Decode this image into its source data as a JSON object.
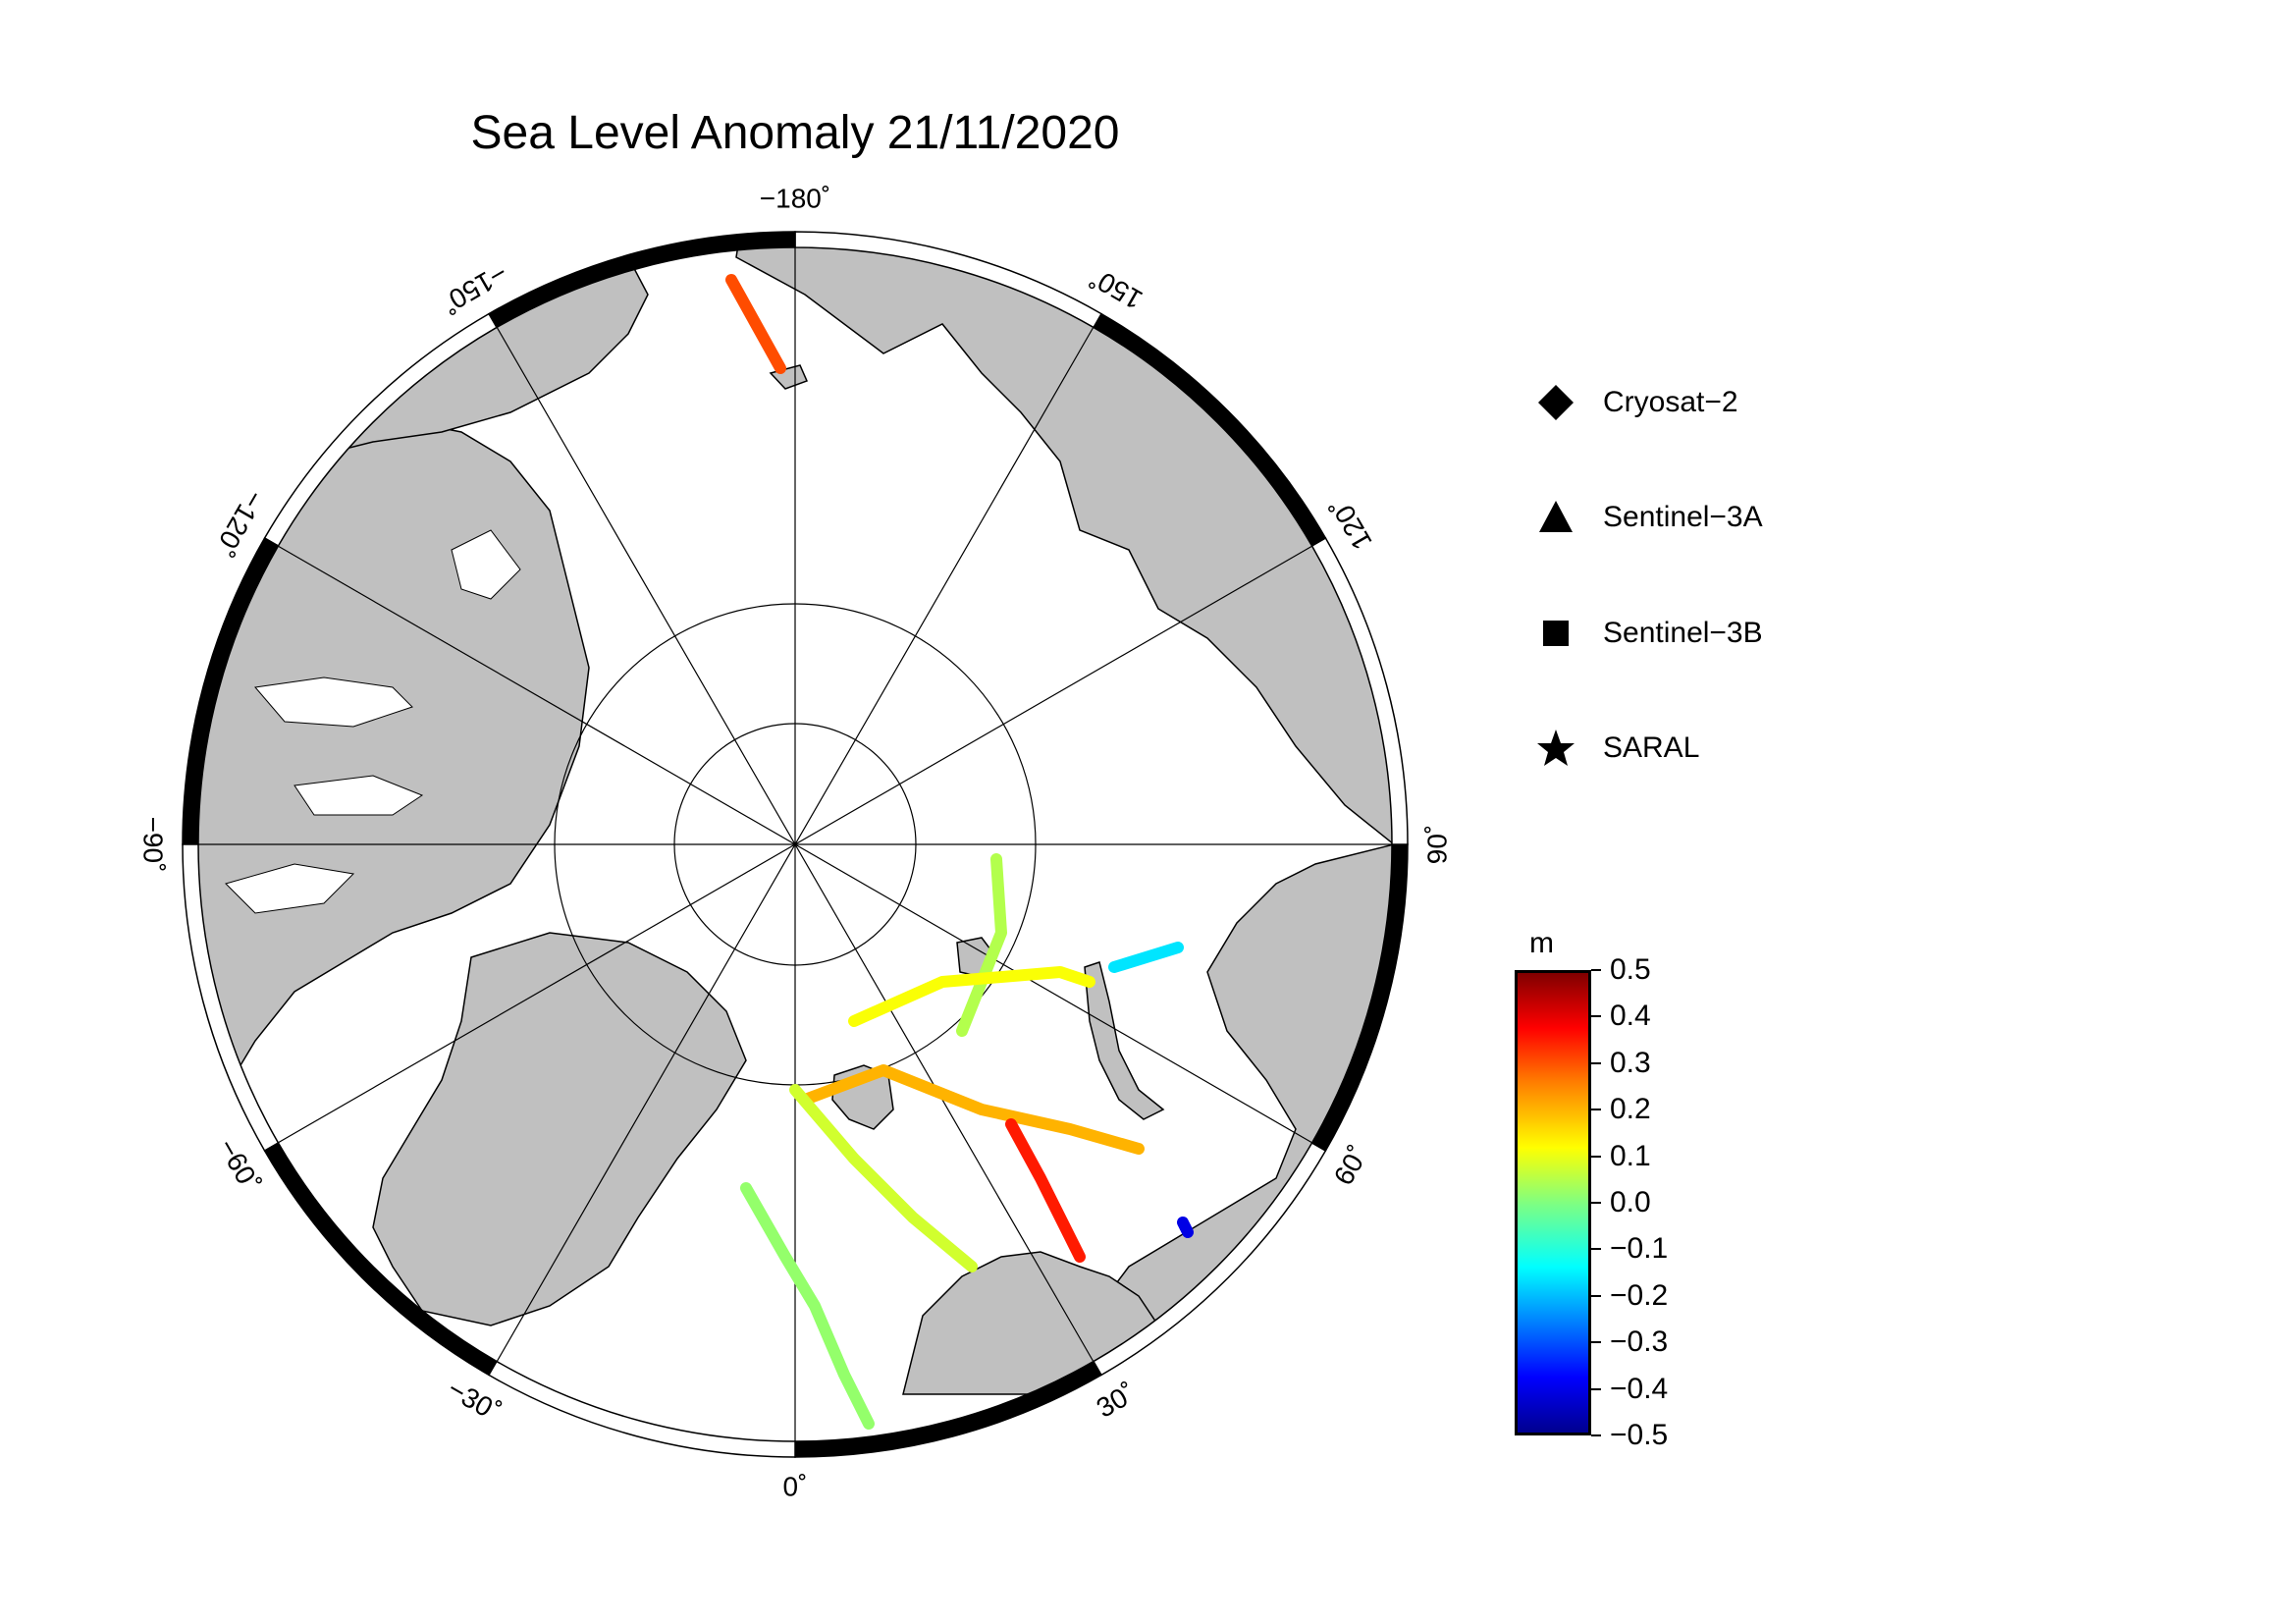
{
  "title": "Sea Level Anomaly 21/11/2020",
  "map": {
    "projection": "north polar stereographic",
    "central_longitude_at_bottom": 0,
    "longitude_labels": [
      "−180˚",
      "150˚",
      "120˚",
      "90˚",
      "60˚",
      "30˚",
      "0˚",
      "−30˚",
      "−60˚",
      "−90˚",
      "−120˚",
      "−150˚"
    ],
    "colors": {
      "land": "#c0c0c0",
      "ocean": "#ffffff",
      "border": "#000000"
    }
  },
  "legend": [
    {
      "symbol": "diamond-icon",
      "label": "Cryosat−2"
    },
    {
      "symbol": "triangle-icon",
      "label": "Sentinel−3A"
    },
    {
      "symbol": "square-icon",
      "label": "Sentinel−3B"
    },
    {
      "symbol": "star-icon",
      "label": "SARAL"
    }
  ],
  "colorbar": {
    "unit": "m",
    "range": [
      -0.5,
      0.5
    ],
    "colormap": "jet",
    "tick_labels": [
      "0.5",
      "0.4",
      "0.3",
      "0.2",
      "0.1",
      "0.0",
      "−0.1",
      "−0.2",
      "−0.3",
      "−0.4",
      "−0.5"
    ]
  },
  "tracks": [
    {
      "name": "arctic-north-track",
      "value": 0.3
    },
    {
      "name": "svalbard-track-a",
      "value": 0.05
    },
    {
      "name": "svalbard-track-b",
      "value": 0.12
    },
    {
      "name": "barents-track-a",
      "value": 0.2
    },
    {
      "name": "barents-track-b",
      "value": 0.35
    },
    {
      "name": "greenland-sea-track",
      "value": 0.08
    },
    {
      "name": "norwegian-sea-track",
      "value": 0.02
    },
    {
      "name": "kara-track",
      "value": -0.15
    },
    {
      "name": "white-sea-point",
      "value": -0.4
    }
  ]
}
